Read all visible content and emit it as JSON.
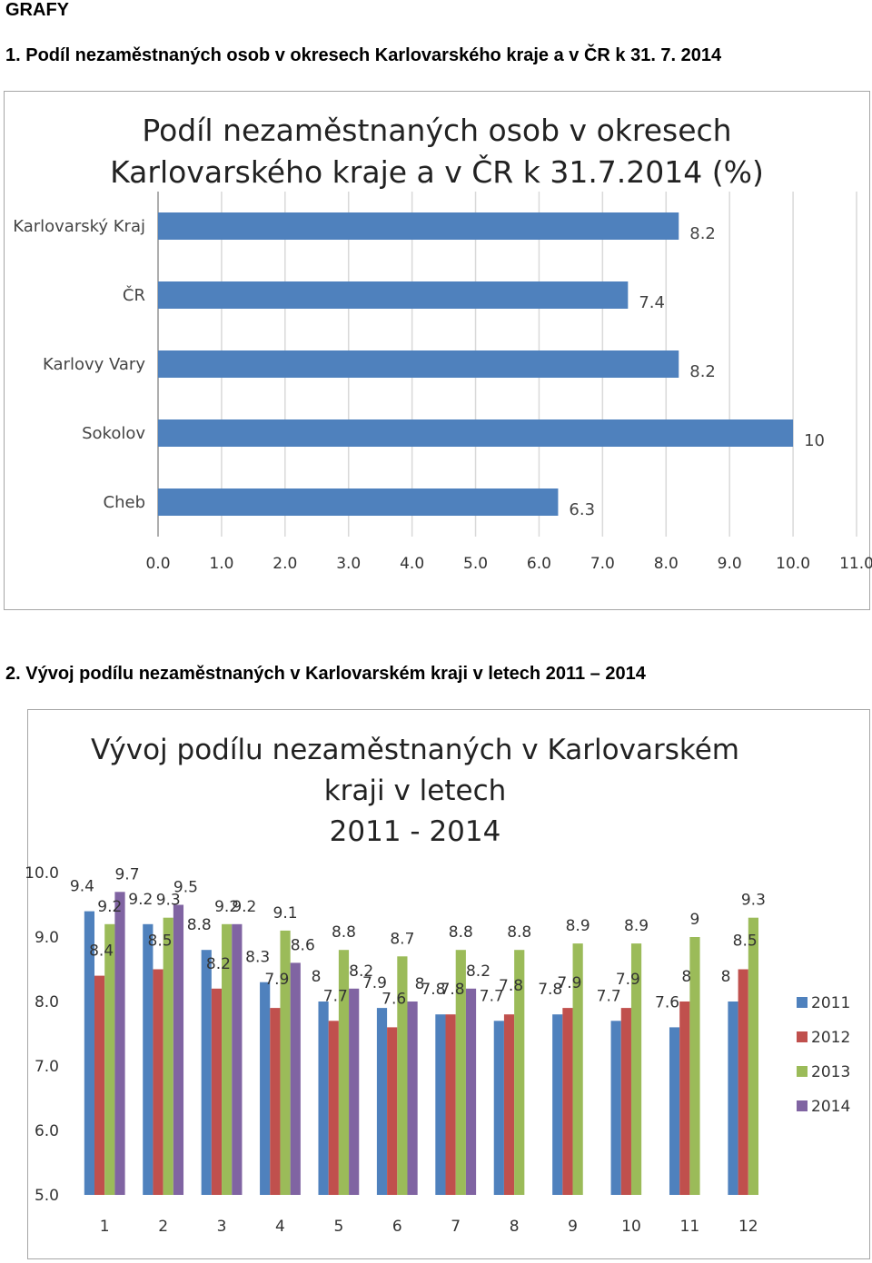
{
  "document": {
    "heading": "GRAFY",
    "section1_title": "1. Podíl nezaměstnaných osob v okresech Karlovarského kraje a v ČR k 31. 7. 2014",
    "section2_title": "2. Vývoj podílu nezaměstnaných v Karlovarském kraji v letech 2011 – 2014"
  },
  "chart1_text": {
    "title_line1": "Podíl nezaměstnaných osob v okresech",
    "title_line2": "Karlovarského kraje a v ČR k 31.7.2014 (%)"
  },
  "chart2_text": {
    "title_line1": "Vývoj podílu nezaměstnaných v Karlovarském",
    "title_line2": "kraji v letech",
    "title_line3": "2011 - 2014",
    "legend": [
      "2011",
      "2012",
      "2013",
      "2014"
    ]
  },
  "chart_data": [
    {
      "type": "bar",
      "orientation": "horizontal",
      "title": "Podíl nezaměstnaných osob v okresech Karlovarského kraje a v ČR k 31.7.2014 (%)",
      "categories": [
        "Karlovarský Kraj",
        "ČR",
        "Karlovy Vary",
        "Sokolov",
        "Cheb"
      ],
      "values": [
        8.2,
        7.4,
        8.2,
        10,
        6.3
      ],
      "value_labels": [
        "8.2",
        "7.4",
        "8.2",
        "10",
        "6.3"
      ],
      "xlim": [
        0,
        11
      ],
      "x_ticks": [
        "0.0",
        "1.0",
        "2.0",
        "3.0",
        "4.0",
        "5.0",
        "6.0",
        "7.0",
        "8.0",
        "9.0",
        "10.0",
        "11.0"
      ],
      "grid": "vertical",
      "bar_color": "#4f81bd"
    },
    {
      "type": "bar",
      "orientation": "vertical",
      "title": "Vývoj podílu nezaměstnaných v Karlovarském kraji v letech 2011 - 2014",
      "categories": [
        "1",
        "2",
        "3",
        "4",
        "5",
        "6",
        "7",
        "8",
        "9",
        "10",
        "11",
        "12"
      ],
      "series": [
        {
          "name": "2011",
          "color": "#4f81bd",
          "values": [
            9.4,
            9.2,
            8.8,
            8.3,
            8,
            7.9,
            7.8,
            7.7,
            7.8,
            7.7,
            7.6,
            8
          ],
          "labels": [
            "9.4",
            "9.2",
            "8.8",
            "8.3",
            "8",
            "7.9",
            "7.8",
            "7.7",
            "7.8",
            "7.7",
            "7.6",
            "8"
          ]
        },
        {
          "name": "2012",
          "color": "#c0504d",
          "values": [
            8.4,
            8.5,
            8.2,
            7.9,
            7.7,
            7.6,
            7.8,
            7.8,
            7.9,
            7.9,
            8,
            8.5
          ],
          "labels": [
            "8.4",
            "8.5",
            "8.2",
            "7.9",
            "7.7",
            "7.6",
            "7.8",
            "7.8",
            "7.9",
            "7.9",
            "8",
            "8.5"
          ]
        },
        {
          "name": "2013",
          "color": "#9bbb59",
          "values": [
            9.2,
            9.3,
            9.2,
            9.1,
            8.8,
            8.7,
            8.8,
            8.8,
            8.9,
            8.9,
            9,
            9.3
          ],
          "labels": [
            "9.2",
            "9.3",
            "9.2",
            "9.1",
            "8.8",
            "8.7",
            "8.8",
            "8.8",
            "8.9",
            "8.9",
            "9",
            "9.3"
          ]
        },
        {
          "name": "2014",
          "color": "#8064a2",
          "values": [
            9.7,
            9.5,
            9.2,
            8.6,
            8.2,
            8,
            8.2,
            null,
            null,
            null,
            null,
            null
          ],
          "labels": [
            "9.7",
            "9.5",
            "9.2",
            "8.6",
            "8.2",
            "8",
            "8.2",
            null,
            null,
            null,
            null,
            null
          ]
        }
      ],
      "ylim": [
        5,
        10
      ],
      "y_ticks": [
        "5.0",
        "6.0",
        "7.0",
        "8.0",
        "9.0",
        "10.0"
      ],
      "grid": "none",
      "legend_position": "right"
    }
  ]
}
